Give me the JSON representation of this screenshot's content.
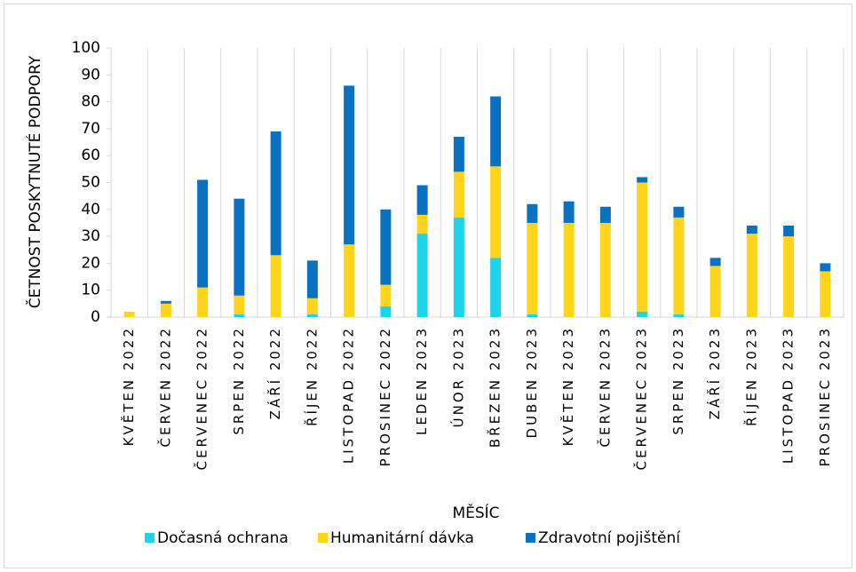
{
  "chart_data": {
    "type": "stacked-bar",
    "x_label": "MĚSÍC",
    "y_label": "ČETNOST POSKYTNUTÉ PODPORY",
    "categories": [
      "KVĚTEN 2022",
      "ČERVEN 2022",
      "ČERVENEC 2022",
      "SRPEN 2022",
      "ZÁŘÍ 2022",
      "ŘÍJEN 2022",
      "LISTOPAD 2022",
      "PROSINEC 2022",
      "LEDEN 2023",
      "ÚNOR 2023",
      "BŘEZEN 2023",
      "DUBEN 2023",
      "KVĚTEN 2023",
      "ČERVEN 2023",
      "ČERVENEC 2023",
      "SRPEN 2023",
      "ZÁŘÍ 2023",
      "ŘÍJEN 2023",
      "LISTOPAD 2023",
      "PROSINEC 2023"
    ],
    "series": [
      {
        "name": "Dočasná ochrana",
        "color": "#1fd3ea",
        "values": [
          0,
          0,
          0,
          1,
          0,
          1,
          0,
          4,
          31,
          37,
          22,
          1,
          0,
          0,
          2,
          1,
          0,
          0,
          0,
          0
        ]
      },
      {
        "name": "Humanitární dávka",
        "color": "#ffd51c",
        "values": [
          2,
          5,
          11,
          7,
          23,
          6,
          27,
          8,
          7,
          17,
          34,
          34,
          35,
          35,
          48,
          36,
          19,
          31,
          30,
          17
        ]
      },
      {
        "name": "Zdravotní pojištění",
        "color": "#0a70c0",
        "values": [
          0,
          1,
          40,
          36,
          46,
          14,
          59,
          28,
          11,
          13,
          26,
          7,
          8,
          6,
          2,
          4,
          3,
          3,
          4,
          3
        ]
      }
    ],
    "ylim": [
      0,
      100
    ],
    "yticks": [
      0,
      10,
      20,
      30,
      40,
      50,
      60,
      70,
      80,
      90,
      100
    ],
    "xgrid": true,
    "legend": "bottom"
  }
}
